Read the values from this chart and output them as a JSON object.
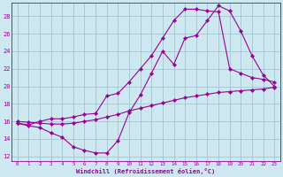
{
  "line1_x": [
    0,
    1,
    2,
    3,
    4,
    5,
    6,
    7,
    8,
    9,
    10,
    11,
    12,
    13,
    14,
    15,
    16,
    17,
    18,
    19,
    20,
    21,
    22,
    23
  ],
  "line1_y": [
    15.8,
    15.5,
    15.3,
    14.7,
    14.2,
    13.1,
    12.7,
    12.4,
    12.4,
    13.8,
    17.0,
    19.0,
    21.5,
    24.0,
    22.5,
    25.5,
    25.8,
    27.5,
    29.2,
    28.6,
    26.3,
    23.5,
    21.3,
    20.0
  ],
  "line2_x": [
    0,
    1,
    2,
    3,
    4,
    5,
    6,
    7,
    8,
    9,
    10,
    11,
    12,
    13,
    14,
    15,
    16,
    17,
    18,
    19,
    20,
    21,
    22,
    23
  ],
  "line2_y": [
    15.8,
    15.6,
    16.0,
    16.3,
    16.3,
    16.5,
    16.8,
    16.9,
    18.9,
    19.2,
    20.5,
    22.0,
    23.5,
    25.5,
    27.5,
    28.8,
    28.8,
    28.6,
    28.5,
    22.0,
    21.5,
    21.0,
    20.8,
    20.5
  ],
  "line3_x": [
    0,
    1,
    2,
    3,
    4,
    5,
    6,
    7,
    8,
    9,
    10,
    11,
    12,
    13,
    14,
    15,
    16,
    17,
    18,
    19,
    20,
    21,
    22,
    23
  ],
  "line3_y": [
    16.0,
    15.9,
    15.8,
    15.7,
    15.7,
    15.8,
    16.0,
    16.2,
    16.5,
    16.8,
    17.2,
    17.5,
    17.8,
    18.1,
    18.4,
    18.7,
    18.9,
    19.1,
    19.3,
    19.4,
    19.5,
    19.6,
    19.7,
    19.9
  ],
  "line_color": "#990099",
  "bg_color": "#cde8f0",
  "grid_color": "#9bbfcc",
  "xlabel": "Windchill (Refroidissement éolien,°C)",
  "xlim_min": -0.5,
  "xlim_max": 23.5,
  "ylim_min": 11.5,
  "ylim_max": 29.5,
  "yticks": [
    12,
    14,
    16,
    18,
    20,
    22,
    24,
    26,
    28
  ],
  "xticks": [
    0,
    1,
    2,
    3,
    4,
    5,
    6,
    7,
    8,
    9,
    10,
    11,
    12,
    13,
    14,
    15,
    16,
    17,
    18,
    19,
    20,
    21,
    22,
    23
  ],
  "tick_fontsize": 4.2,
  "xlabel_fontsize": 5.0,
  "ytick_fontsize": 5.0,
  "linewidth": 0.8,
  "markersize": 2.2
}
